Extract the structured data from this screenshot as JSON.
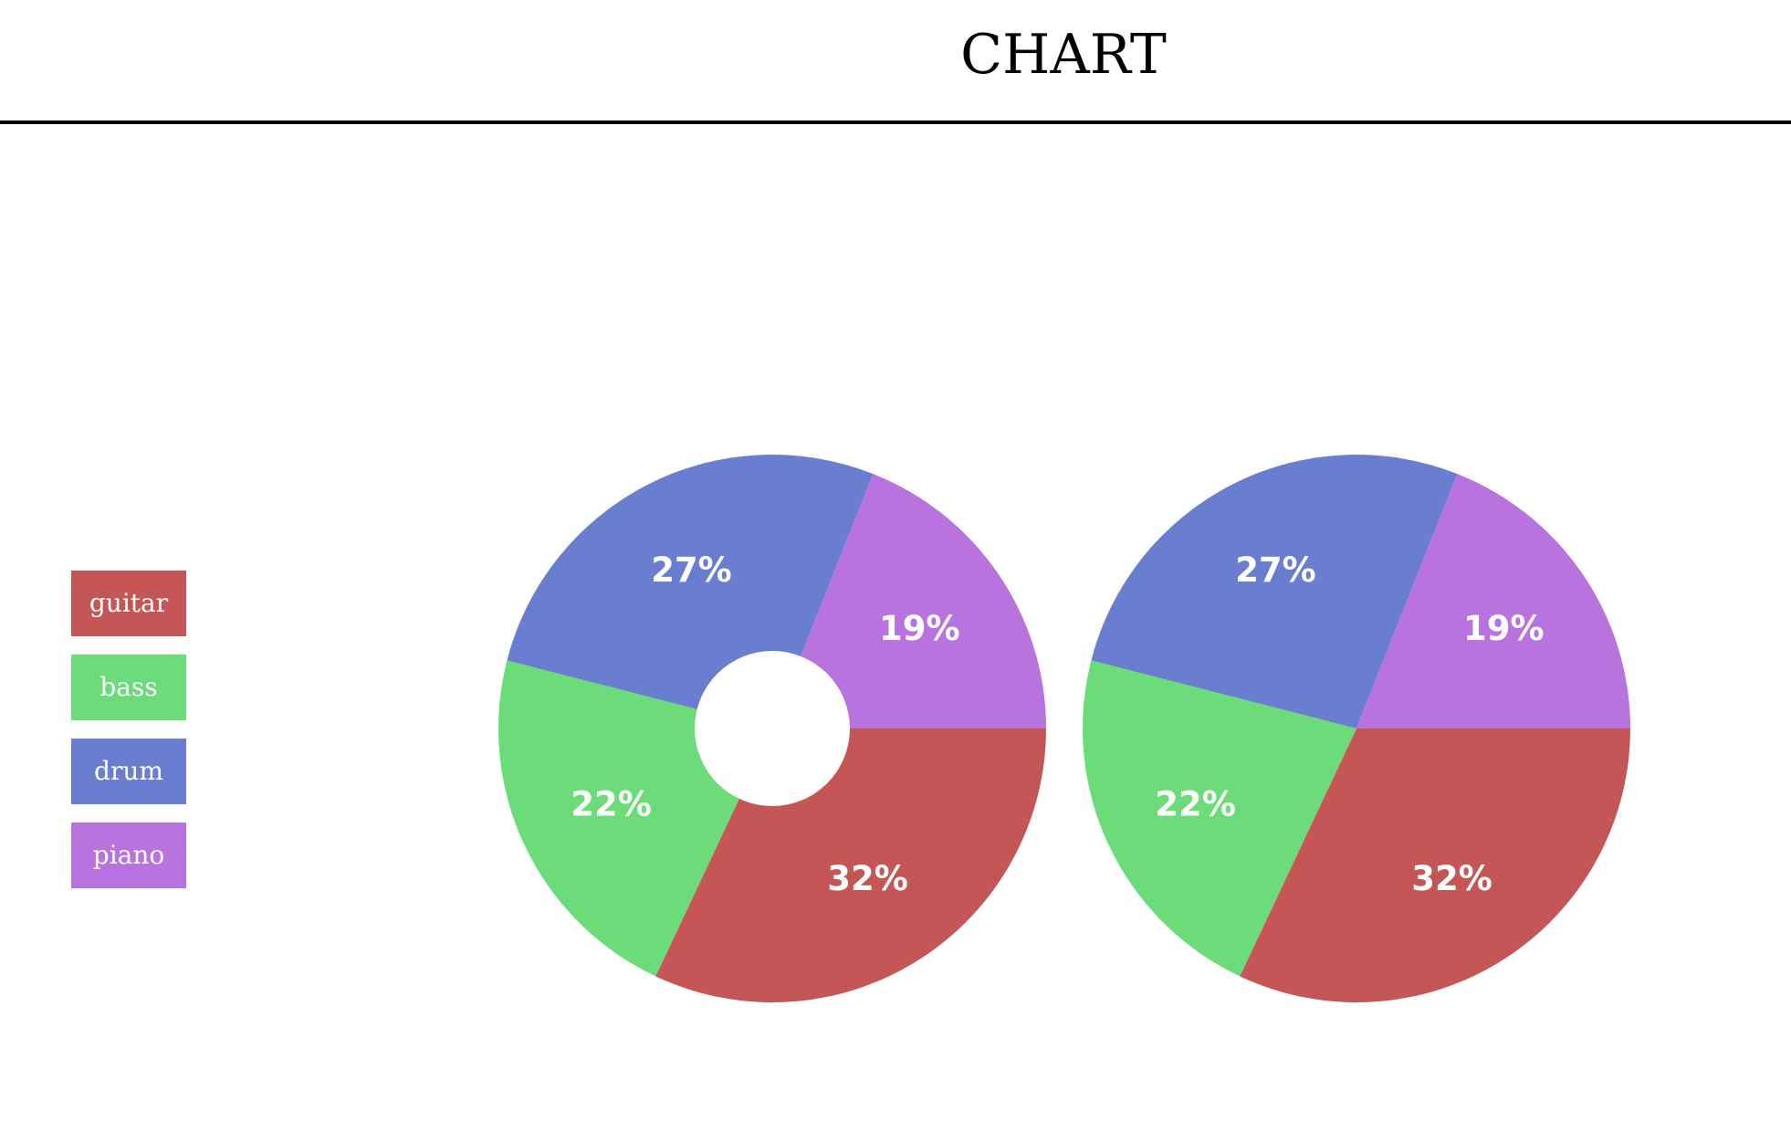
{
  "header": {
    "title": "CHART"
  },
  "colors": {
    "guitar": "#c45656",
    "bass": "#6cdb79",
    "drum": "#6a7ecf",
    "piano": "#b873df"
  },
  "chart_data": [
    {
      "type": "pie",
      "variant": "donut",
      "categories": [
        "guitar",
        "bass",
        "drum",
        "piano"
      ],
      "values": [
        32,
        22,
        27,
        19
      ],
      "labels": [
        "32%",
        "22%",
        "27%",
        "19%"
      ],
      "legend": "left"
    },
    {
      "type": "pie",
      "categories": [
        "guitar",
        "bass",
        "drum",
        "piano"
      ],
      "values": [
        32,
        22,
        27,
        19
      ],
      "labels": [
        "32%",
        "22%",
        "27%",
        "19%"
      ],
      "legend": "left"
    }
  ]
}
